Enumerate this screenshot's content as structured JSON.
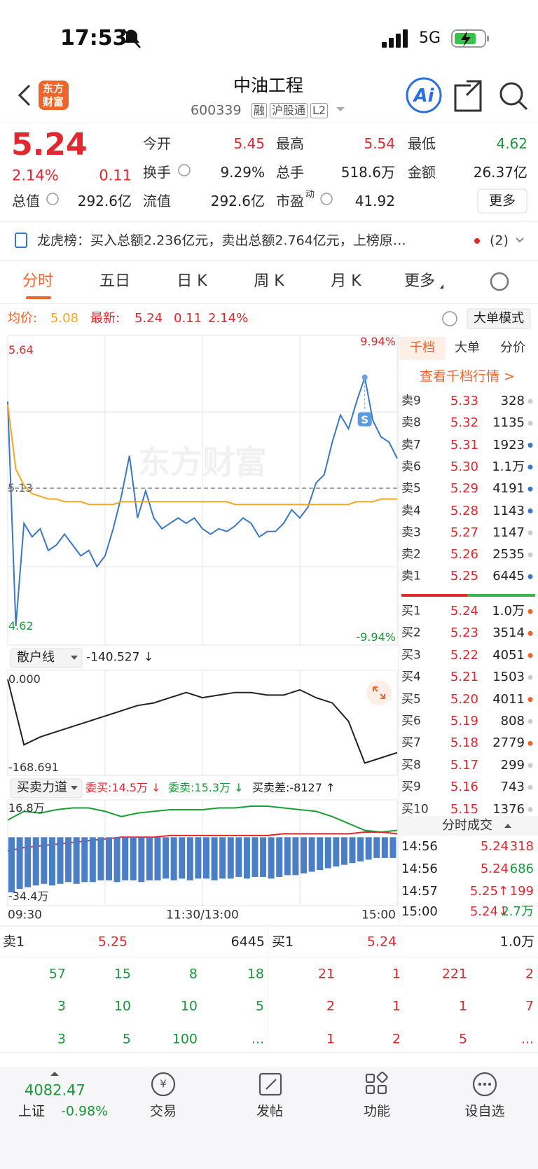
{
  "status": {
    "time": "17:53",
    "network": "5G"
  },
  "header": {
    "logo": [
      "东方",
      "财富"
    ],
    "title": "中油工程",
    "code": "600339",
    "tags": [
      "融",
      "沪股通",
      "L2"
    ]
  },
  "quote": {
    "price": "5.24",
    "percent": "2.14%",
    "change": "0.11",
    "more": "更多",
    "fields": [
      {
        "label": "今开",
        "value": "5.45",
        "color": "#e0282e"
      },
      {
        "label": "最高",
        "value": "5.54",
        "color": "#e0282e"
      },
      {
        "label": "最低",
        "value": "4.62",
        "color": "#1a9a3a"
      },
      {
        "label": "换手",
        "value": "9.29%"
      },
      {
        "label": "总手",
        "value": "518.6万"
      },
      {
        "label": "金额",
        "value": "26.37亿"
      },
      {
        "label": "总值",
        "value": "292.6亿"
      },
      {
        "label": "流值",
        "value": "292.6亿"
      },
      {
        "label": "市盈",
        "sup": "动",
        "value": "41.92"
      }
    ]
  },
  "notice": {
    "text": "龙虎榜：买入总额2.236亿元，卖出总额2.764亿元，上榜原…",
    "count": "(2)"
  },
  "tabs": [
    "分时",
    "五日",
    "日 K",
    "周 K",
    "月 K",
    "更多"
  ],
  "infobar": {
    "avg_label": "均价:",
    "avg": "5.08",
    "last_label": "最新:",
    "last": "5.24",
    "change": "0.11",
    "percent": "2.14%",
    "button": "大单模式"
  },
  "chart_data": [
    {
      "type": "line",
      "xlim": [
        0,
        240
      ],
      "ylim": [
        4.62,
        5.64
      ],
      "yticks": [
        5.64,
        4.62
      ],
      "y2lim": [
        -9.94,
        9.94
      ],
      "y2ticks": [
        {
          "value": 9.94,
          "label": "9.94%"
        },
        {
          "value": -9.94,
          "label": "-9.94%"
        }
      ],
      "reference": 5.13,
      "watermark": "东方财富",
      "signal": "S",
      "x": [
        0,
        5,
        10,
        15,
        20,
        25,
        30,
        35,
        40,
        45,
        50,
        55,
        60,
        65,
        70,
        75,
        80,
        85,
        90,
        95,
        100,
        105,
        110,
        115,
        120,
        125,
        130,
        135,
        140,
        145,
        150,
        155,
        160,
        165,
        170,
        175,
        180,
        185,
        190,
        195,
        200,
        205,
        210,
        215,
        220,
        225,
        230,
        235,
        240
      ],
      "series": [
        {
          "color": "#3a78c3",
          "values": [
            5.45,
            4.62,
            5.0,
            4.95,
            4.98,
            4.9,
            4.92,
            4.96,
            4.92,
            4.88,
            4.9,
            4.84,
            4.88,
            4.98,
            5.1,
            5.25,
            5.02,
            5.12,
            5.02,
            4.98,
            5.0,
            5.02,
            5.0,
            5.02,
            4.98,
            4.96,
            4.98,
            4.97,
            4.99,
            5.02,
            5.0,
            4.95,
            4.97,
            4.97,
            5.0,
            5.05,
            5.02,
            5.06,
            5.15,
            5.18,
            5.3,
            5.4,
            5.35,
            5.45,
            5.54,
            5.38,
            5.32,
            5.3,
            5.24
          ]
        },
        {
          "color": "#f5a623",
          "values": [
            5.44,
            5.2,
            5.14,
            5.11,
            5.1,
            5.09,
            5.09,
            5.08,
            5.08,
            5.08,
            5.07,
            5.07,
            5.07,
            5.07,
            5.08,
            5.08,
            5.08,
            5.08,
            5.08,
            5.08,
            5.08,
            5.08,
            5.08,
            5.08,
            5.08,
            5.08,
            5.08,
            5.08,
            5.07,
            5.07,
            5.07,
            5.07,
            5.07,
            5.07,
            5.07,
            5.07,
            5.07,
            5.07,
            5.07,
            5.07,
            5.07,
            5.07,
            5.07,
            5.08,
            5.08,
            5.08,
            5.09,
            5.09,
            5.09
          ]
        }
      ]
    },
    {
      "type": "line",
      "title": "散户线",
      "value": "-140.527 ↓",
      "xlim": [
        0,
        240
      ],
      "ylim": [
        -168.691,
        0
      ],
      "yticks": [
        {
          "value": 0,
          "label": "0.000"
        },
        -168.691
      ],
      "x": [
        0,
        10,
        20,
        30,
        40,
        50,
        60,
        70,
        80,
        90,
        100,
        110,
        120,
        130,
        140,
        150,
        160,
        170,
        180,
        190,
        200,
        210,
        220,
        230,
        240
      ],
      "series": [
        {
          "color": "#222222",
          "values": [
            0,
            -125,
            -110,
            -100,
            -90,
            -80,
            -70,
            -60,
            -50,
            -45,
            -35,
            -25,
            -35,
            -30,
            -25,
            -25,
            -30,
            -30,
            -20,
            -35,
            -45,
            -80,
            -160,
            -150,
            -140
          ]
        }
      ]
    },
    {
      "type": "line",
      "title": "买卖力道",
      "annotations": [
        {
          "text": "委买:14.5万 ↓",
          "color": "#e0282e"
        },
        {
          "text": "委卖:15.3万 ↓",
          "color": "#1a9a3a"
        },
        {
          "text": "买卖差:-8127 ↑",
          "color": "#222222"
        }
      ],
      "xlim": [
        0,
        240
      ],
      "xticks": [
        {
          "value": 0,
          "label": "09:30"
        },
        {
          "value": 120,
          "label": "11:30/13:00"
        },
        {
          "value": 240,
          "label": "15:00"
        }
      ],
      "ylim": [
        -34.4,
        16.8
      ],
      "yticks": [
        {
          "value": 16.8,
          "label": "16.8万"
        },
        {
          "value": -34.4,
          "label": "-34.4万"
        }
      ],
      "x": [
        0,
        10,
        20,
        30,
        40,
        50,
        60,
        70,
        80,
        90,
        100,
        110,
        120,
        130,
        140,
        150,
        160,
        170,
        180,
        190,
        200,
        210,
        220,
        230,
        240
      ],
      "series": [
        {
          "color": "#1aa033",
          "values": [
            10,
            15,
            14,
            16,
            17,
            17,
            15,
            12,
            14,
            15,
            16,
            16,
            16,
            17,
            17,
            18,
            18,
            17,
            16,
            15,
            12,
            8,
            4,
            3,
            4
          ]
        },
        {
          "color": "#e0282e",
          "values": [
            -8,
            -6,
            -5,
            -4,
            -3,
            -2,
            -1,
            0,
            0,
            0,
            1,
            1,
            1,
            1,
            1,
            1,
            1,
            2,
            2,
            2,
            2,
            2,
            3,
            3,
            2
          ]
        },
        {
          "type": "bar",
          "color": "#4a7fc8",
          "x": [
            0,
            5,
            10,
            15,
            20,
            25,
            30,
            35,
            40,
            45,
            50,
            55,
            60,
            65,
            70,
            75,
            80,
            85,
            90,
            95,
            100,
            105,
            110,
            115,
            120,
            125,
            130,
            135,
            140,
            145,
            150,
            155,
            160,
            165,
            170,
            175,
            180,
            185,
            190,
            195,
            200,
            205,
            210,
            215,
            220,
            225,
            230,
            235
          ],
          "values": [
            -32,
            -30,
            -29,
            -28,
            -27,
            -28,
            -27,
            -26,
            -27,
            -26,
            -26,
            -25,
            -25,
            -26,
            -25,
            -25,
            -26,
            -25,
            -25,
            -24,
            -25,
            -24,
            -25,
            -24,
            -24,
            -25,
            -24,
            -24,
            -23,
            -24,
            -23,
            -23,
            -24,
            -23,
            -22,
            -22,
            -21,
            -20,
            -19,
            -18,
            -17,
            -16,
            -15,
            -14,
            -13,
            -12,
            -12,
            -12
          ]
        }
      ]
    }
  ],
  "orderbook": {
    "tabs": [
      "千档",
      "大单",
      "分价"
    ],
    "link": "查看千档行情 >",
    "sells": [
      {
        "label": "卖9",
        "price": "5.33",
        "volume": "328",
        "dot": "#cccccc"
      },
      {
        "label": "卖8",
        "price": "5.32",
        "volume": "1135",
        "dot": "#cccccc"
      },
      {
        "label": "卖7",
        "price": "5.31",
        "volume": "1923",
        "dot": "#3a78c3"
      },
      {
        "label": "卖6",
        "price": "5.30",
        "volume": "1.1万",
        "dot": "#3a78c3"
      },
      {
        "label": "卖5",
        "price": "5.29",
        "volume": "4191",
        "dot": "#3a78c3"
      },
      {
        "label": "卖4",
        "price": "5.28",
        "volume": "1143",
        "dot": "#3a78c3"
      },
      {
        "label": "卖3",
        "price": "5.27",
        "volume": "1147",
        "dot": "#cccccc"
      },
      {
        "label": "卖2",
        "price": "5.26",
        "volume": "2535",
        "dot": "#cccccc"
      },
      {
        "label": "卖1",
        "price": "5.25",
        "volume": "6445",
        "dot": "#3a78c3"
      }
    ],
    "buys": [
      {
        "label": "买1",
        "price": "5.24",
        "volume": "1.0万",
        "dot": "#f0642a"
      },
      {
        "label": "买2",
        "price": "5.23",
        "volume": "3514",
        "dot": "#f0642a"
      },
      {
        "label": "买3",
        "price": "5.22",
        "volume": "4051",
        "dot": "#f0642a"
      },
      {
        "label": "买4",
        "price": "5.21",
        "volume": "1503",
        "dot": "#cccccc"
      },
      {
        "label": "买5",
        "price": "5.20",
        "volume": "4011",
        "dot": "#f0642a"
      },
      {
        "label": "买6",
        "price": "5.19",
        "volume": "808",
        "dot": "#cccccc"
      },
      {
        "label": "买7",
        "price": "5.18",
        "volume": "2779",
        "dot": "#f0642a"
      },
      {
        "label": "买8",
        "price": "5.17",
        "volume": "299",
        "dot": "#cccccc"
      },
      {
        "label": "买9",
        "price": "5.16",
        "volume": "743",
        "dot": "#cccccc"
      },
      {
        "label": "买10",
        "price": "5.15",
        "volume": "1376",
        "dot": "#cccccc"
      }
    ]
  },
  "trades": {
    "title": "分时成交",
    "rows": [
      {
        "time": "14:56",
        "price": "5.24",
        "volume": "318",
        "volume_color": "#e0282e"
      },
      {
        "time": "14:56",
        "price": "5.24",
        "volume": "686",
        "volume_color": "#1a9a3a"
      },
      {
        "time": "14:57",
        "price": "5.25↑",
        "volume": "199",
        "volume_color": "#e0282e"
      },
      {
        "time": "15:00",
        "price": "5.24↓",
        "volume": "2.7万",
        "volume_color": "#1a9a3a"
      }
    ]
  },
  "depth": {
    "sell": {
      "label": "卖1",
      "price": "5.25",
      "volume": "6445"
    },
    "buy": {
      "label": "买1",
      "price": "5.24",
      "volume": "1.0万"
    },
    "sell_rows": [
      [
        "57",
        "15",
        "8",
        "18"
      ],
      [
        "3",
        "10",
        "10",
        "5"
      ],
      [
        "3",
        "5",
        "100",
        "..."
      ]
    ],
    "buy_rows": [
      [
        "21",
        "1",
        "221",
        "2"
      ],
      [
        "2",
        "1",
        "1",
        "7"
      ],
      [
        "1",
        "2",
        "5",
        "..."
      ]
    ]
  },
  "nav": {
    "index_value": "4082.47",
    "index_name": "上证",
    "index_change": "-0.98%",
    "icon_text": "¥",
    "items": [
      "交易",
      "发帖",
      "功能",
      "设自选"
    ]
  }
}
